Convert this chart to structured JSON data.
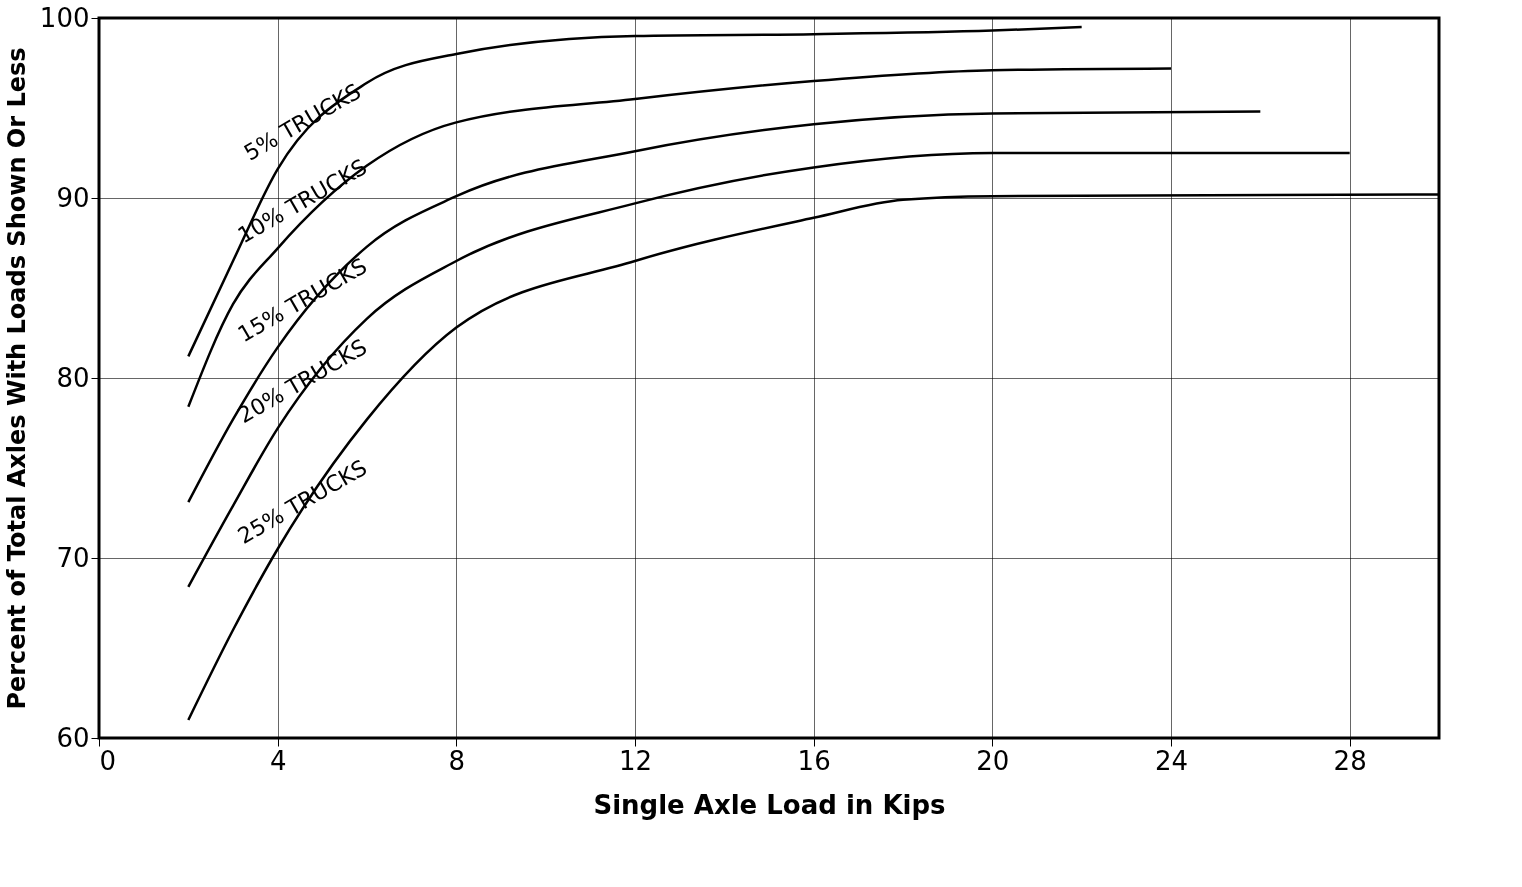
{
  "chart_data": {
    "type": "line",
    "xlabel": "Single Axle Load in Kips",
    "ylabel": "Percent of Total Axles With Loads Shown Or Less",
    "xlim": [
      0,
      30
    ],
    "ylim": [
      60,
      100
    ],
    "xticks": [
      0,
      4,
      8,
      12,
      16,
      20,
      24,
      28
    ],
    "yticks": [
      60,
      70,
      80,
      90,
      100
    ],
    "grid": true,
    "legend": false,
    "marker": "none",
    "line_style": "solid",
    "series": [
      {
        "name": "5% TRUCKS",
        "color": "#000000",
        "x": [
          2,
          3,
          4,
          6,
          8,
          12,
          16,
          20,
          22
        ],
        "values": [
          81.2,
          86.5,
          91.6,
          96.4,
          98.0,
          99.0,
          99.1,
          99.3,
          99.5
        ]
      },
      {
        "name": "10% TRUCKS",
        "color": "#000000",
        "x": [
          2,
          3,
          4,
          6,
          8,
          12,
          16,
          20,
          24
        ],
        "values": [
          78.4,
          84.1,
          87.2,
          91.8,
          94.2,
          95.5,
          96.5,
          97.1,
          97.2
        ]
      },
      {
        "name": "15% TRUCKS",
        "color": "#000000",
        "x": [
          2,
          3,
          4,
          6,
          8,
          12,
          16,
          20,
          26
        ],
        "values": [
          73.1,
          77.7,
          81.7,
          87.3,
          90.1,
          92.6,
          94.1,
          94.7,
          94.8
        ]
      },
      {
        "name": "20% TRUCKS",
        "color": "#000000",
        "x": [
          2,
          3,
          4,
          6,
          8,
          12,
          16,
          20,
          28
        ],
        "values": [
          68.4,
          72.9,
          77.2,
          83.3,
          86.5,
          89.7,
          91.7,
          92.5,
          92.5
        ]
      },
      {
        "name": "25% TRUCKS",
        "color": "#000000",
        "x": [
          2,
          3,
          4,
          6,
          8,
          12,
          16,
          18,
          20,
          30
        ],
        "values": [
          61.0,
          66.0,
          70.5,
          77.7,
          82.8,
          86.5,
          88.9,
          89.9,
          90.1,
          90.2
        ]
      }
    ]
  }
}
